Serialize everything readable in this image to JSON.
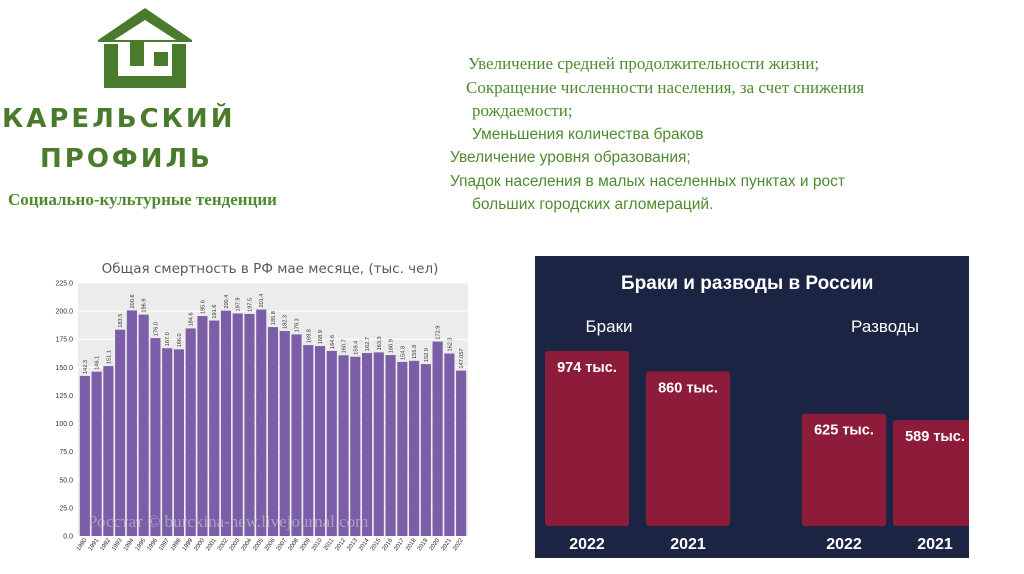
{
  "header": {
    "logo_line1": "КАРЕЛЬСКИЙ",
    "logo_line2": "ПРОФИЛЬ",
    "subtitle": "Социально-культурные тенденции",
    "logo_icon": "house-icon",
    "brand_color": "#4a7a2c"
  },
  "trends": [
    {
      "bullet": "",
      "text": "Увеличение средней продолжительности жизни;"
    },
    {
      "bullet": "",
      "text": "Сокращение численности населения, за счет снижения"
    },
    {
      "bullet": "",
      "text": "рождаемости;"
    },
    {
      "bullet": "",
      "text": "Уменьшения количества браков"
    },
    {
      "bullet": "",
      "text": "Увеличение уровня образования;"
    },
    {
      "bullet": "",
      "text": "Упадок населения в малых населенных пунктах и рост"
    },
    {
      "bullet": "",
      "text": "больших городских агломераций."
    }
  ],
  "chart_data": [
    {
      "type": "bar",
      "title": "Общая смертность в РФ мае месяце, (тыс. чел)",
      "watermark": "Росстат © burckina-new.livejournal.com",
      "xlabel": "",
      "ylabel": "",
      "ylim": [
        0,
        225
      ],
      "yticks": [
        "0.0",
        "25.0",
        "50.0",
        "75.0",
        "100.0",
        "125.0",
        "150.0",
        "175.0",
        "200.0",
        "225.0"
      ],
      "grid": true,
      "bar_color": "#7b5ea7",
      "categories": [
        "1990",
        "1991",
        "1992",
        "1993",
        "1994",
        "1995",
        "1996",
        "1997",
        "1998",
        "1999",
        "2000",
        "2001",
        "2002",
        "2003",
        "2004",
        "2005",
        "2006",
        "2007",
        "2008",
        "2009",
        "2010",
        "2011",
        "2012",
        "2013",
        "2014",
        "2015",
        "2016",
        "2017",
        "2018",
        "2019",
        "2020",
        "2021",
        "2022"
      ],
      "values": [
        142.3,
        146.1,
        151.1,
        183.5,
        200.6,
        196.9,
        176.0,
        167.0,
        166.0,
        184.6,
        195.6,
        191.6,
        200.4,
        197.9,
        197.5,
        201.4,
        185.8,
        182.3,
        179.3,
        169.8,
        168.9,
        164.6,
        160.7,
        159.4,
        162.7,
        163.3,
        160.9,
        154.8,
        155.8,
        152.9,
        172.9,
        162.3,
        147.057
      ],
      "value_labels": [
        "142.3",
        "146.1",
        "151.1",
        "183.5",
        "200.6",
        "196.9",
        "176.0",
        "167.0",
        "166.0",
        "184.6",
        "195.6",
        "191.6",
        "200.4",
        "197.9",
        "197.5",
        "201.4",
        "185.8",
        "182.3",
        "179.3",
        "169.8",
        "168.9",
        "164.6",
        "160.7",
        "159.4",
        "162.7",
        "163.3",
        "160.9",
        "154.8",
        "155.8",
        "152.9",
        "172.9",
        "162.3",
        "147.057"
      ]
    },
    {
      "type": "bar",
      "title": "Браки и разводы в России",
      "groups": [
        "Браки",
        "Разводы"
      ],
      "bar_color": "#8c1c3a",
      "background": "#1b2442",
      "bars": [
        {
          "group": "Браки",
          "year": "2022",
          "value": 974,
          "label": "974 тыс."
        },
        {
          "group": "Браки",
          "year": "2021",
          "value": 860,
          "label": "860 тыс."
        },
        {
          "group": "Разводы",
          "year": "2022",
          "value": 625,
          "label": "625 тыс."
        },
        {
          "group": "Разводы",
          "year": "2021",
          "value": 589,
          "label": "589 тыс."
        }
      ]
    }
  ]
}
